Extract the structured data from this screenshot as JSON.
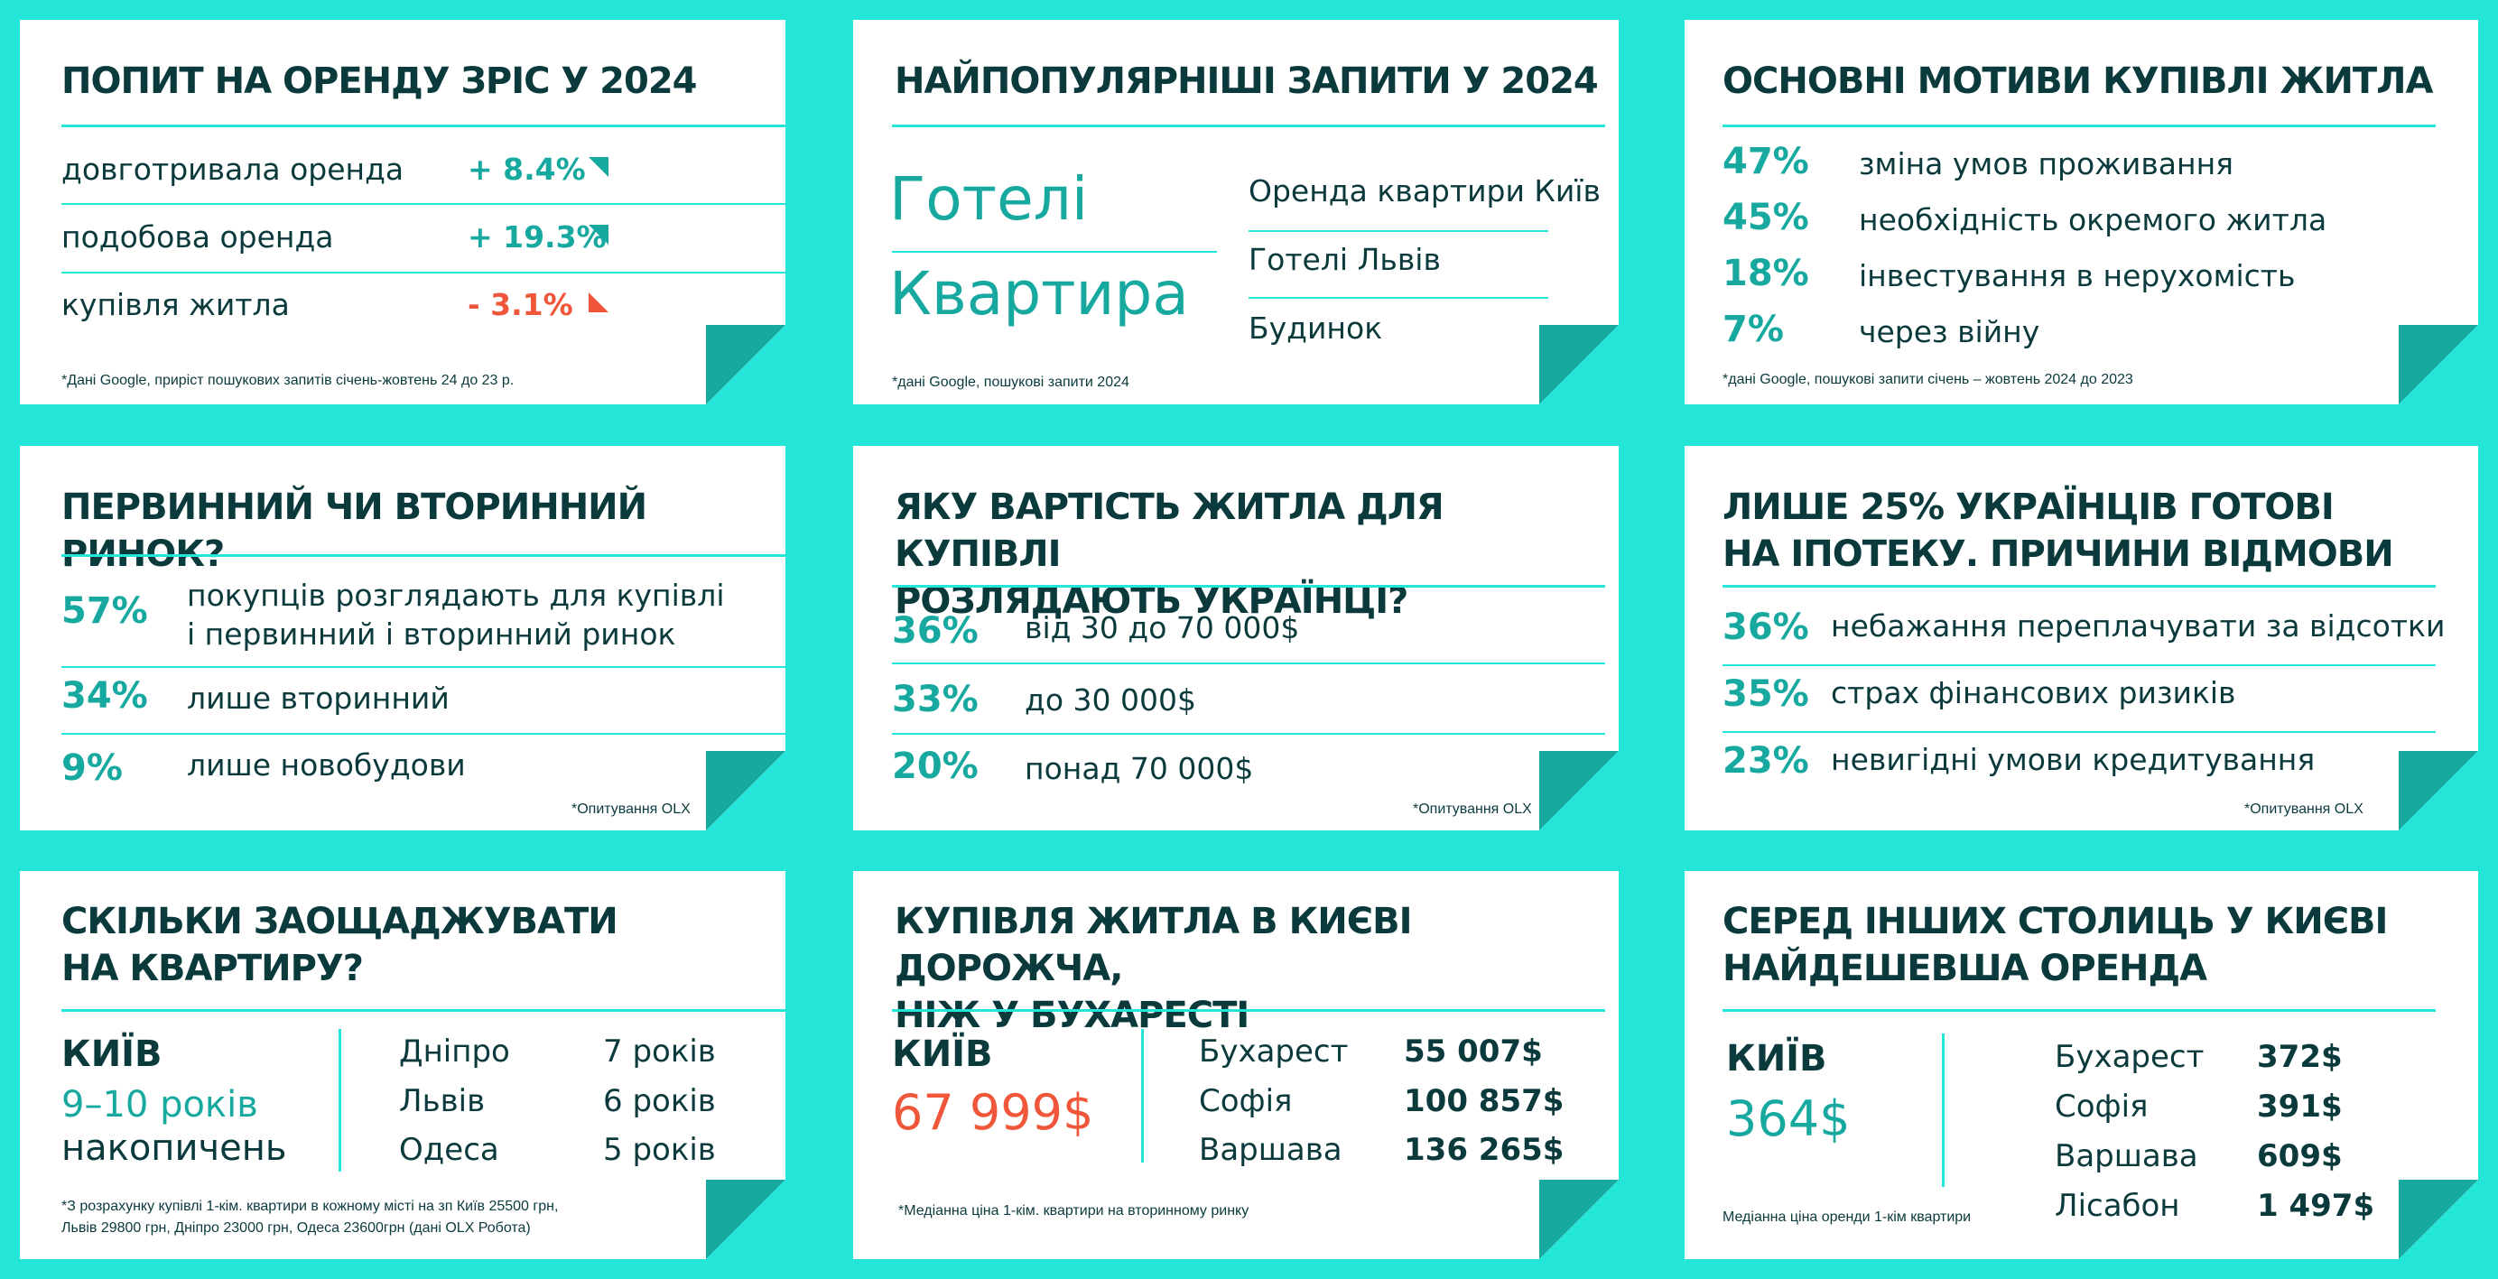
{
  "colors": {
    "background": "#23e5d8",
    "teal": "#17a9a0",
    "dark": "#0b3a3d",
    "red": "#f0573a"
  },
  "card1": {
    "title": "ПОПИТ НА ОРЕНДУ ЗРІС У 2024",
    "rows": [
      {
        "label": "довготривала оренда",
        "value": "+ 8.4%",
        "trend": "up"
      },
      {
        "label": "подобова оренда",
        "value": "+ 19.3%",
        "trend": "up"
      },
      {
        "label": "купівля житла",
        "value": "- 3.1%",
        "trend": "down"
      }
    ],
    "note": "*Дані Google, приріст пошукових запитів січень-жовтень 24 до 23 р."
  },
  "card2": {
    "title": "НАЙПОПУЛЯРНІШІ ЗАПИТИ У 2024",
    "big1": "Готелі",
    "big2": "Квартира",
    "list": [
      "Оренда квартири Київ",
      "Готелі Львів",
      "Будинок"
    ],
    "note": "*дані Google, пошукові запити 2024"
  },
  "card3": {
    "title": "ОСНОВНІ МОТИВИ КУПІВЛІ ЖИТЛА",
    "rows": [
      {
        "pct": "47%",
        "label": "зміна умов проживання"
      },
      {
        "pct": "45%",
        "label": "необхідність окремого житла"
      },
      {
        "pct": "18%",
        "label": "інвестування в нерухомість"
      },
      {
        "pct": "7%",
        "label": "через війну"
      }
    ],
    "note": "*дані Google, пошукові запити січень – жовтень 2024 до 2023"
  },
  "card4": {
    "title": "ПЕРВИННИЙ ЧИ ВТОРИННИЙ РИНОК?",
    "rows": [
      {
        "pct": "57%",
        "label": "покупців розглядають для купівлі\nі первинний і вторинний ринок"
      },
      {
        "pct": "34%",
        "label": "лише вторинний"
      },
      {
        "pct": "9%",
        "label": "лише новобудови"
      }
    ],
    "note": "*Опитування OLX"
  },
  "card5": {
    "title": "ЯКУ ВАРТІСТЬ ЖИТЛА ДЛЯ КУПІВЛІ\nРОЗЛЯДАЮТЬ УКРАЇНЦІ?",
    "rows": [
      {
        "pct": "36%",
        "label": "від 30 до 70 000$"
      },
      {
        "pct": "33%",
        "label": "до 30 000$"
      },
      {
        "pct": "20%",
        "label": "понад 70 000$"
      }
    ],
    "note": "*Опитування OLX"
  },
  "card6": {
    "title": "ЛИШЕ 25% УКРАЇНЦІВ ГОТОВІ\nНА ІПОТЕКУ. ПРИЧИНИ ВІДМОВИ",
    "rows": [
      {
        "pct": "36%",
        "label": "небажання переплачувати за відсотки"
      },
      {
        "pct": "35%",
        "label": "страх фінансових ризиків"
      },
      {
        "pct": "23%",
        "label": "невигідні умови кредитування"
      }
    ],
    "note": "*Опитування OLX"
  },
  "card7": {
    "title": "СКІЛЬКИ ЗАОЩАДЖУВАТИ\nНА КВАРТИРУ?",
    "kyiv": "КИЇВ",
    "kyiv_years": "9–10 років",
    "kyiv_sub": "накопичень",
    "cities": [
      {
        "city": "Дніпро",
        "years": "7 років"
      },
      {
        "city": "Львів",
        "years": "6 років"
      },
      {
        "city": "Одеса",
        "years": "5 років"
      }
    ],
    "note": "*З розрахунку купівлі 1-кім. квартири в кожному місті на зп Київ 25500 грн,\nЛьвів 29800 грн, Дніпро 23000 грн, Одеса 23600грн (дані OLX Робота)"
  },
  "card8": {
    "title": "КУПІВЛЯ ЖИТЛА В КИЄВІ ДОРОЖЧА,\nНІЖ У БУХАРЕСТІ",
    "kyiv": "КИЇВ",
    "kyiv_price": "67 999$",
    "cities": [
      {
        "city": "Бухарест",
        "price": "55 007$"
      },
      {
        "city": "Софія",
        "price": "100 857$"
      },
      {
        "city": "Варшава",
        "price": "136 265$"
      }
    ],
    "note": "*Медіанна ціна 1-кім. квартири на вторинному ринку"
  },
  "card9": {
    "title": "СЕРЕД ІНШИХ СТОЛИЦЬ У КИЄВІ\nНАЙДЕШЕВША ОРЕНДА",
    "kyiv": "КИЇВ",
    "kyiv_price": "364$",
    "cities": [
      {
        "city": "Бухарест",
        "price": "372$"
      },
      {
        "city": "Софія",
        "price": "391$"
      },
      {
        "city": "Варшава",
        "price": "609$"
      },
      {
        "city": "Лісабон",
        "price": "1 497$"
      }
    ],
    "note": "Медіанна ціна оренди 1-кім квартири"
  }
}
